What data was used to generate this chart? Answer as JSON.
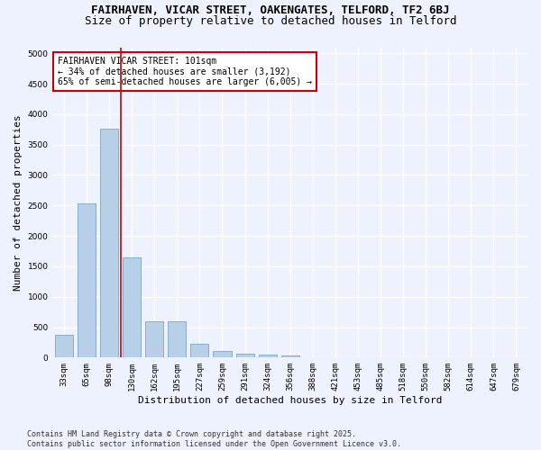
{
  "title_line1": "FAIRHAVEN, VICAR STREET, OAKENGATES, TELFORD, TF2 6BJ",
  "title_line2": "Size of property relative to detached houses in Telford",
  "xlabel": "Distribution of detached houses by size in Telford",
  "ylabel": "Number of detached properties",
  "categories": [
    "33sqm",
    "65sqm",
    "98sqm",
    "130sqm",
    "162sqm",
    "195sqm",
    "227sqm",
    "259sqm",
    "291sqm",
    "324sqm",
    "356sqm",
    "388sqm",
    "421sqm",
    "453sqm",
    "485sqm",
    "518sqm",
    "550sqm",
    "582sqm",
    "614sqm",
    "647sqm",
    "679sqm"
  ],
  "values": [
    370,
    2530,
    3760,
    1650,
    600,
    600,
    220,
    110,
    60,
    55,
    30,
    0,
    0,
    0,
    0,
    0,
    0,
    0,
    0,
    0,
    0
  ],
  "bar_color": "#b8cfe8",
  "bar_edgecolor": "#6699cc",
  "vline_color": "#cc0000",
  "annotation_text": "FAIRHAVEN VICAR STREET: 101sqm\n← 34% of detached houses are smaller (3,192)\n65% of semi-detached houses are larger (6,005) →",
  "annotation_box_edgecolor": "#cc0000",
  "annotation_box_facecolor": "#ffffff",
  "ylim": [
    0,
    5100
  ],
  "yticks": [
    0,
    500,
    1000,
    1500,
    2000,
    2500,
    3000,
    3500,
    4000,
    4500,
    5000
  ],
  "background_color": "#eef2ff",
  "grid_color": "#ffffff",
  "footer_text": "Contains HM Land Registry data © Crown copyright and database right 2025.\nContains public sector information licensed under the Open Government Licence v3.0.",
  "title_fontsize": 9,
  "subtitle_fontsize": 9,
  "tick_fontsize": 6.5,
  "ylabel_fontsize": 8,
  "xlabel_fontsize": 8,
  "annotation_fontsize": 7,
  "footer_fontsize": 6
}
